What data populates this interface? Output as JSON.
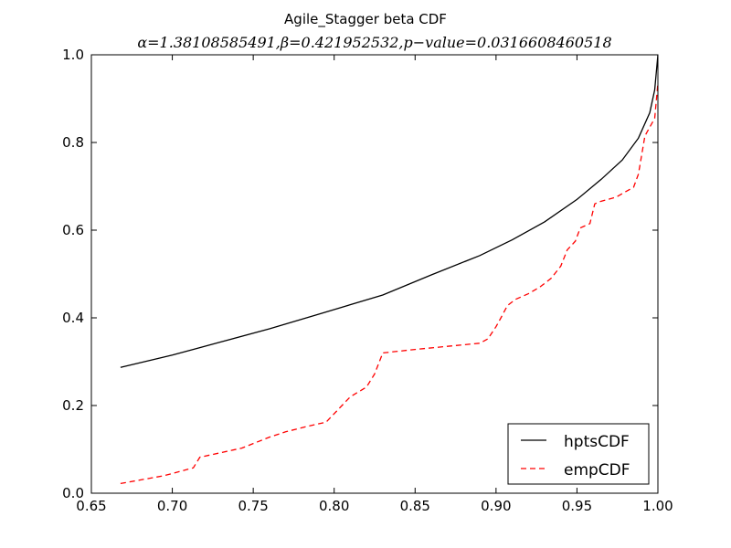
{
  "chart_data": {
    "type": "line",
    "title": "Agile_Stagger beta CDF",
    "subtitle": "α=1.38108585491,β=0.421952532,p−value=0.0316608460518",
    "xlabel": "",
    "ylabel": "",
    "xlim": [
      0.65,
      1.0
    ],
    "ylim": [
      0.0,
      1.0
    ],
    "x_ticks": [
      "0.65",
      "0.70",
      "0.75",
      "0.80",
      "0.85",
      "0.90",
      "0.95",
      "1.00"
    ],
    "y_ticks": [
      "0.0",
      "0.2",
      "0.4",
      "0.6",
      "0.8",
      "1.0"
    ],
    "grid": false,
    "legend_position": "lower-right",
    "series": [
      {
        "name": "hptsCDF",
        "color": "#000000",
        "style": "solid",
        "x": [
          0.668,
          0.7,
          0.73,
          0.76,
          0.79,
          0.83,
          0.86,
          0.89,
          0.91,
          0.93,
          0.95,
          0.965,
          0.978,
          0.988,
          0.995,
          0.998,
          1.0
        ],
        "y": [
          0.287,
          0.315,
          0.345,
          0.375,
          0.408,
          0.452,
          0.498,
          0.542,
          0.578,
          0.619,
          0.67,
          0.716,
          0.76,
          0.81,
          0.868,
          0.92,
          1.0
        ]
      },
      {
        "name": "empCDF",
        "color": "#ff0000",
        "style": "dashed",
        "x": [
          0.668,
          0.695,
          0.713,
          0.717,
          0.743,
          0.76,
          0.77,
          0.783,
          0.795,
          0.81,
          0.82,
          0.825,
          0.83,
          0.85,
          0.87,
          0.89,
          0.895,
          0.9,
          0.903,
          0.907,
          0.912,
          0.92,
          0.927,
          0.934,
          0.94,
          0.944,
          0.949,
          0.952,
          0.958,
          0.961,
          0.964,
          0.974,
          0.985,
          0.988,
          0.992,
          0.995,
          0.998,
          1.0
        ],
        "y": [
          0.022,
          0.04,
          0.058,
          0.082,
          0.103,
          0.128,
          0.14,
          0.152,
          0.162,
          0.22,
          0.242,
          0.272,
          0.32,
          0.328,
          0.335,
          0.342,
          0.352,
          0.38,
          0.4,
          0.428,
          0.442,
          0.455,
          0.47,
          0.49,
          0.518,
          0.555,
          0.575,
          0.605,
          0.615,
          0.66,
          0.665,
          0.675,
          0.698,
          0.728,
          0.815,
          0.835,
          0.855,
          0.935
        ]
      }
    ]
  }
}
